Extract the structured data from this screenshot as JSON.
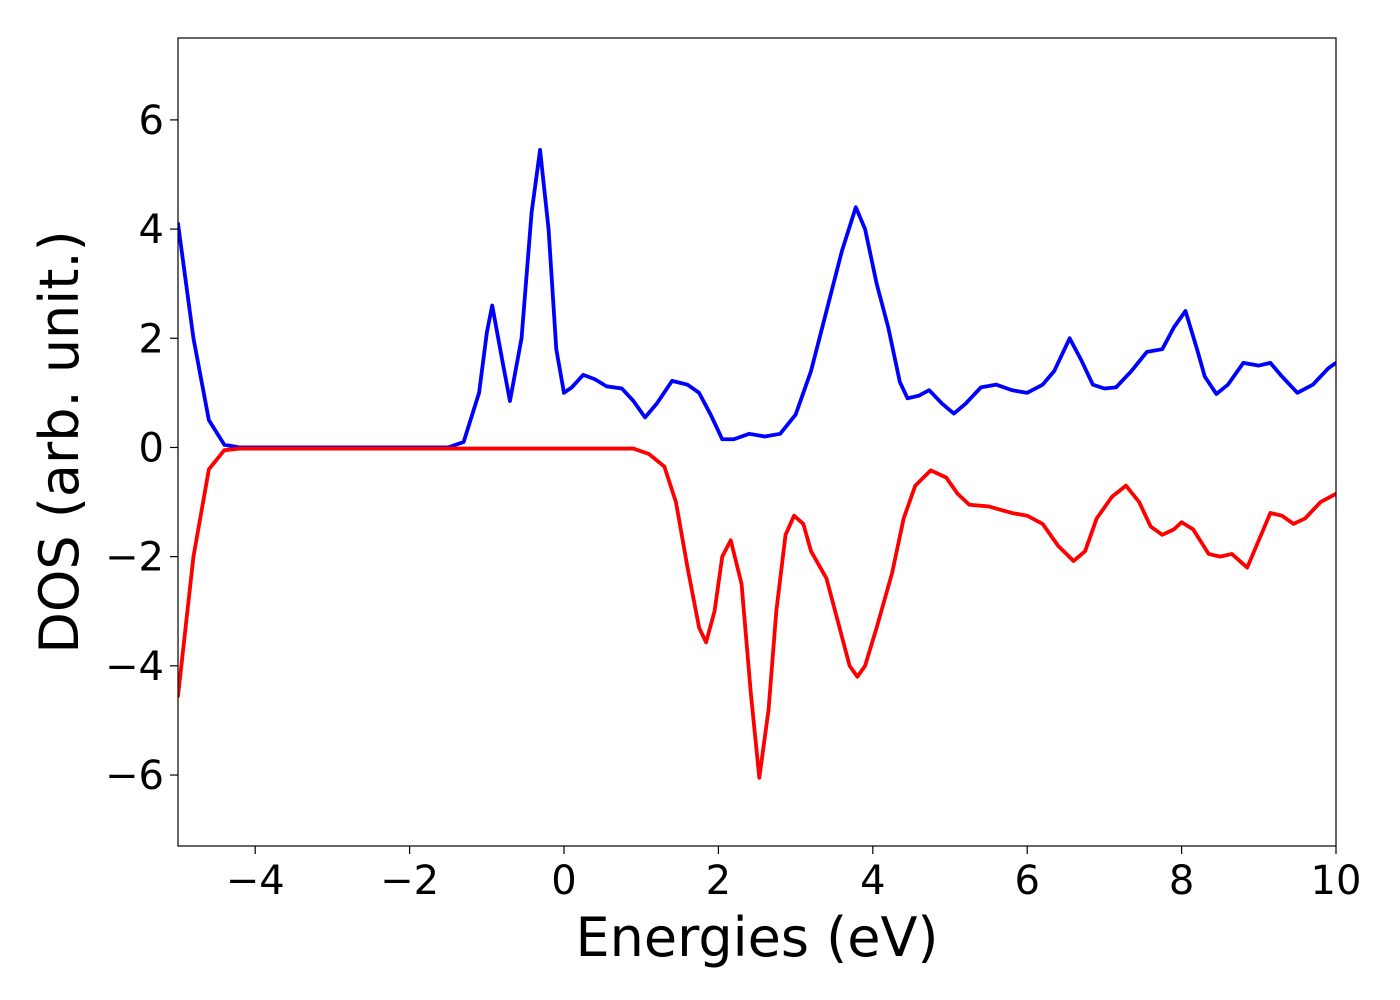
{
  "chart_data": {
    "type": "line",
    "xlabel": "Energies (eV)",
    "ylabel": "DOS (arb. unit.)",
    "xlim": [
      -5,
      10
    ],
    "ylim": [
      -7.3,
      7.5
    ],
    "xticks": [
      {
        "value": -4,
        "label": "−4"
      },
      {
        "value": -2,
        "label": "−2"
      },
      0,
      2,
      4,
      6,
      8,
      10
    ],
    "yticks": [
      {
        "value": -6,
        "label": "−6"
      },
      {
        "value": -4,
        "label": "−4"
      },
      {
        "value": -2,
        "label": "−2"
      },
      0,
      2,
      4,
      6
    ],
    "grid": false,
    "series": [
      {
        "color": "#0000ff",
        "x": [
          -5,
          -4.8,
          -4.6,
          -4.4,
          -4.2,
          -3,
          -2,
          -1.5,
          -1.3,
          -1.1,
          -1.0,
          -0.93,
          -0.8,
          -0.7,
          -0.55,
          -0.42,
          -0.31,
          -0.2,
          -0.1,
          0.0,
          0.1,
          0.25,
          0.4,
          0.55,
          0.75,
          0.9,
          1.05,
          1.2,
          1.4,
          1.6,
          1.75,
          1.9,
          2.05,
          2.2,
          2.4,
          2.6,
          2.8,
          3.0,
          3.2,
          3.4,
          3.6,
          3.78,
          3.9,
          4.05,
          4.2,
          4.35,
          4.45,
          4.6,
          4.73,
          4.9,
          5.05,
          5.2,
          5.4,
          5.6,
          5.8,
          6.0,
          6.2,
          6.35,
          6.55,
          6.7,
          6.85,
          7.0,
          7.15,
          7.35,
          7.55,
          7.75,
          7.9,
          8.05,
          8.2,
          8.3,
          8.45,
          8.6,
          8.8,
          9.0,
          9.15,
          9.3,
          9.5,
          9.7,
          9.9,
          10
        ],
        "values": [
          4.1,
          2.0,
          0.5,
          0.05,
          0,
          0,
          0,
          0,
          0.1,
          1.0,
          2.1,
          2.6,
          1.6,
          0.85,
          2.0,
          4.3,
          5.45,
          4.0,
          1.8,
          1.0,
          1.1,
          1.33,
          1.25,
          1.12,
          1.08,
          0.85,
          0.55,
          0.8,
          1.22,
          1.15,
          1.0,
          0.6,
          0.15,
          0.15,
          0.25,
          0.2,
          0.25,
          0.6,
          1.4,
          2.5,
          3.6,
          4.4,
          4.0,
          3.0,
          2.2,
          1.2,
          0.9,
          0.95,
          1.05,
          0.8,
          0.62,
          0.8,
          1.1,
          1.15,
          1.05,
          1.0,
          1.15,
          1.4,
          2.0,
          1.6,
          1.15,
          1.08,
          1.1,
          1.4,
          1.75,
          1.8,
          2.2,
          2.5,
          1.8,
          1.3,
          0.98,
          1.15,
          1.55,
          1.5,
          1.55,
          1.3,
          1.0,
          1.15,
          1.45,
          1.55
        ]
      },
      {
        "color": "#ff0000",
        "x": [
          -5,
          -4.8,
          -4.6,
          -4.4,
          -4.2,
          -2,
          0,
          0.9,
          1.1,
          1.3,
          1.45,
          1.6,
          1.75,
          1.84,
          1.95,
          2.05,
          2.16,
          2.3,
          2.42,
          2.53,
          2.65,
          2.75,
          2.87,
          2.98,
          3.1,
          3.2,
          3.4,
          3.55,
          3.7,
          3.8,
          3.9,
          4.05,
          4.25,
          4.4,
          4.55,
          4.75,
          4.95,
          5.1,
          5.25,
          5.5,
          5.8,
          6.0,
          6.2,
          6.4,
          6.6,
          6.75,
          6.9,
          7.1,
          7.28,
          7.45,
          7.6,
          7.75,
          7.9,
          8.0,
          8.15,
          8.35,
          8.5,
          8.65,
          8.85,
          9.0,
          9.15,
          9.3,
          9.45,
          9.6,
          9.8,
          10
        ],
        "values": [
          -4.55,
          -2.0,
          -0.4,
          -0.05,
          -0.02,
          -0.02,
          -0.02,
          -0.02,
          -0.12,
          -0.35,
          -1.0,
          -2.2,
          -3.3,
          -3.57,
          -3.0,
          -2.0,
          -1.7,
          -2.5,
          -4.5,
          -6.05,
          -4.8,
          -3.0,
          -1.6,
          -1.25,
          -1.4,
          -1.9,
          -2.4,
          -3.2,
          -4.0,
          -4.2,
          -4.0,
          -3.3,
          -2.3,
          -1.3,
          -0.7,
          -0.42,
          -0.55,
          -0.85,
          -1.05,
          -1.08,
          -1.2,
          -1.25,
          -1.4,
          -1.8,
          -2.08,
          -1.9,
          -1.3,
          -0.9,
          -0.7,
          -1.0,
          -1.45,
          -1.6,
          -1.5,
          -1.37,
          -1.5,
          -1.95,
          -2.0,
          -1.95,
          -2.2,
          -1.7,
          -1.2,
          -1.25,
          -1.4,
          -1.3,
          -1.0,
          -0.85
        ]
      }
    ]
  }
}
